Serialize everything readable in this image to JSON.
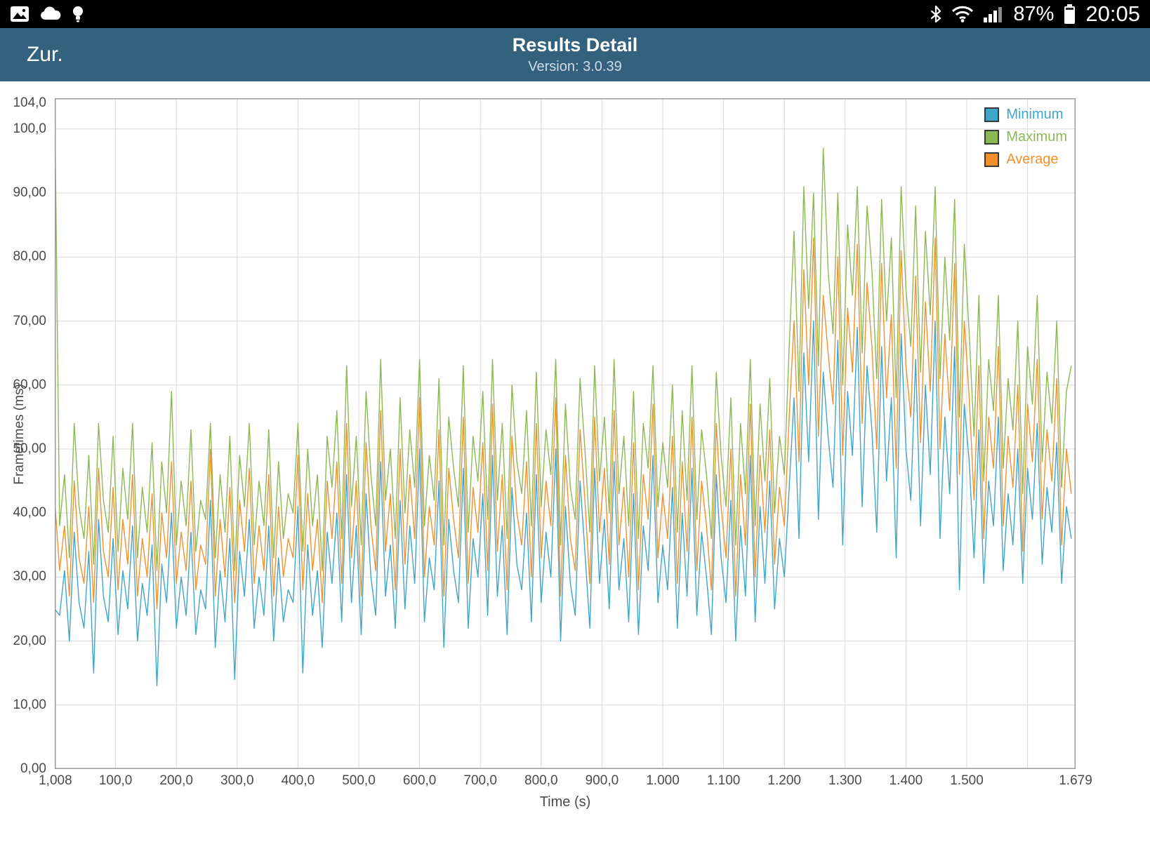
{
  "colors": {
    "app_bar": "#33617E",
    "status_bar": "#000000",
    "minimum": "#3FA5C9",
    "maximum": "#8CB854",
    "average": "#F0912D"
  },
  "status_bar": {
    "battery_percent": "87%",
    "time": "20:05",
    "left_icons": [
      "gallery-icon",
      "cloud-icon",
      "lightbulb-icon"
    ],
    "right_icons": [
      "bluetooth-icon",
      "wifi-icon",
      "signal-icon",
      "battery-icon"
    ]
  },
  "app_bar": {
    "back_label": "Zur.",
    "title": "Results Detail",
    "subtitle": "Version: 3.0.39"
  },
  "chart_data": {
    "type": "line",
    "title": "",
    "xlabel": "Time (s)",
    "ylabel": "Frametimes (ms)",
    "xlim": [
      0,
      1679
    ],
    "ylim": [
      0,
      104.8
    ],
    "grid": true,
    "legend_position": "top-right",
    "x_grid_step": 100,
    "x_ticks": [
      {
        "v": 1.008,
        "label": "1,008"
      },
      {
        "v": 100,
        "label": "100,0"
      },
      {
        "v": 200,
        "label": "200,0"
      },
      {
        "v": 300,
        "label": "300,0"
      },
      {
        "v": 400,
        "label": "400,0"
      },
      {
        "v": 500,
        "label": "500,0"
      },
      {
        "v": 600,
        "label": "600,0"
      },
      {
        "v": 700,
        "label": "700,0"
      },
      {
        "v": 800,
        "label": "800,0"
      },
      {
        "v": 900,
        "label": "900,0"
      },
      {
        "v": 1000,
        "label": "1.000"
      },
      {
        "v": 1100,
        "label": "1.100"
      },
      {
        "v": 1200,
        "label": "1.200"
      },
      {
        "v": 1300,
        "label": "1.300"
      },
      {
        "v": 1400,
        "label": "1.400"
      },
      {
        "v": 1500,
        "label": "1.500"
      },
      {
        "v": 1679,
        "label": "1.679"
      }
    ],
    "y_ticks": [
      {
        "v": 104,
        "label": "104,0"
      },
      {
        "v": 100,
        "label": "100,0"
      },
      {
        "v": 90,
        "label": "90,00"
      },
      {
        "v": 80,
        "label": "80,00"
      },
      {
        "v": 70,
        "label": "70,00"
      },
      {
        "v": 60,
        "label": "60,00"
      },
      {
        "v": 50,
        "label": "50,00"
      },
      {
        "v": 40,
        "label": "40,00"
      },
      {
        "v": 30,
        "label": "30,00"
      },
      {
        "v": 20,
        "label": "20,00"
      },
      {
        "v": 10,
        "label": "10,00"
      },
      {
        "v": 0,
        "label": "0,00"
      }
    ],
    "x_start": 0,
    "x_step": 8,
    "series": [
      {
        "name": "Minimum",
        "color": "#3FA5C9",
        "values": [
          25,
          24,
          31,
          20,
          37,
          26,
          22,
          34,
          15,
          39,
          27,
          23,
          36,
          21,
          31,
          25,
          38,
          20,
          29,
          24,
          35,
          13,
          32,
          26,
          40,
          22,
          30,
          24,
          37,
          21,
          28,
          25,
          42,
          19,
          31,
          23,
          36,
          14,
          34,
          27,
          39,
          22,
          30,
          24,
          38,
          20,
          33,
          23,
          28,
          26,
          41,
          15,
          35,
          24,
          31,
          19,
          37,
          29,
          40,
          23,
          46,
          26,
          38,
          21,
          43,
          30,
          24,
          48,
          27,
          35,
          22,
          42,
          25,
          38,
          29,
          50,
          23,
          33,
          28,
          45,
          19,
          39,
          31,
          26,
          47,
          22,
          36,
          30,
          43,
          24,
          49,
          27,
          38,
          21,
          44,
          32,
          28,
          40,
          23,
          46,
          26,
          37,
          30,
          50,
          20,
          41,
          29,
          24,
          45,
          34,
          22,
          47,
          29,
          39,
          25,
          48,
          28,
          36,
          23,
          43,
          21,
          38,
          31,
          49,
          26,
          35,
          28,
          44,
          22,
          40,
          27,
          47,
          24,
          37,
          30,
          21,
          46,
          33,
          26,
          42,
          20,
          38,
          27,
          49,
          23,
          41,
          29,
          45,
          25,
          36,
          30,
          44,
          58,
          36,
          65,
          48,
          70,
          39,
          62,
          52,
          44,
          67,
          35,
          59,
          49,
          69,
          41,
          63,
          53,
          37,
          66,
          45,
          58,
          33,
          68,
          50,
          42,
          64,
          38,
          60,
          46,
          70,
          36,
          55,
          43,
          66,
          28,
          57,
          48,
          33,
          53,
          29,
          45,
          38,
          55,
          31,
          43,
          35,
          50,
          29,
          47,
          39,
          54,
          32,
          44,
          37,
          51,
          29,
          41,
          36
        ]
      },
      {
        "name": "Maximum",
        "color": "#8CB854",
        "values": [
          104,
          38,
          46,
          33,
          54,
          41,
          36,
          49,
          32,
          54,
          42,
          37,
          52,
          34,
          47,
          39,
          54,
          33,
          44,
          37,
          51,
          31,
          48,
          40,
          59,
          35,
          45,
          38,
          53,
          34,
          42,
          39,
          54,
          33,
          46,
          37,
          52,
          31,
          49,
          41,
          54,
          35,
          45,
          38,
          53,
          33,
          48,
          36,
          43,
          40,
          54,
          34,
          50,
          38,
          46,
          31,
          52,
          44,
          56,
          36,
          63,
          41,
          52,
          35,
          59,
          46,
          38,
          64,
          42,
          50,
          36,
          58,
          40,
          53,
          44,
          64,
          38,
          49,
          42,
          61,
          35,
          55,
          47,
          41,
          63,
          37,
          52,
          45,
          59,
          39,
          64,
          42,
          54,
          36,
          60,
          48,
          43,
          56,
          38,
          62,
          41,
          53,
          46,
          64,
          35,
          57,
          44,
          39,
          61,
          50,
          37,
          63,
          45,
          55,
          40,
          64,
          43,
          52,
          38,
          59,
          36,
          54,
          47,
          63,
          41,
          51,
          44,
          60,
          37,
          56,
          42,
          63,
          39,
          53,
          46,
          36,
          62,
          49,
          41,
          58,
          35,
          54,
          43,
          64,
          38,
          57,
          45,
          61,
          40,
          52,
          46,
          66,
          84,
          59,
          91,
          72,
          90,
          63,
          97,
          78,
          68,
          90,
          60,
          85,
          74,
          91,
          65,
          88,
          78,
          61,
          89,
          70,
          83,
          58,
          91,
          75,
          66,
          88,
          62,
          84,
          71,
          91,
          61,
          80,
          67,
          89,
          55,
          82,
          68,
          52,
          74,
          45,
          64,
          56,
          74,
          47,
          61,
          53,
          70,
          43,
          66,
          57,
          74,
          48,
          62,
          54,
          70,
          44,
          59,
          63
        ]
      },
      {
        "name": "Average",
        "color": "#F0912D",
        "values": [
          42,
          31,
          38,
          27,
          45,
          33,
          29,
          41,
          26,
          47,
          34,
          30,
          44,
          28,
          39,
          32,
          46,
          27,
          36,
          30,
          43,
          25,
          40,
          33,
          48,
          29,
          37,
          31,
          45,
          28,
          35,
          32,
          50,
          27,
          39,
          30,
          44,
          26,
          42,
          34,
          47,
          29,
          38,
          31,
          46,
          27,
          41,
          30,
          36,
          33,
          49,
          28,
          43,
          31,
          39,
          26,
          45,
          36,
          48,
          29,
          54,
          33,
          45,
          27,
          51,
          38,
          31,
          56,
          34,
          43,
          28,
          50,
          32,
          46,
          36,
          58,
          30,
          41,
          35,
          53,
          27,
          47,
          39,
          33,
          55,
          29,
          44,
          37,
          51,
          31,
          57,
          34,
          46,
          28,
          52,
          40,
          35,
          48,
          30,
          54,
          33,
          45,
          38,
          58,
          27,
          49,
          36,
          31,
          53,
          42,
          29,
          55,
          37,
          47,
          32,
          56,
          35,
          44,
          30,
          51,
          28,
          46,
          39,
          57,
          33,
          43,
          36,
          52,
          29,
          48,
          34,
          55,
          31,
          45,
          38,
          28,
          54,
          41,
          33,
          50,
          27,
          46,
          35,
          57,
          30,
          49,
          37,
          53,
          32,
          44,
          38,
          55,
          70,
          48,
          78,
          60,
          83,
          52,
          74,
          65,
          57,
          80,
          49,
          72,
          62,
          82,
          54,
          76,
          66,
          50,
          79,
          58,
          71,
          47,
          81,
          63,
          55,
          77,
          51,
          73,
          59,
          83,
          50,
          68,
          56,
          79,
          46,
          70,
          58,
          42,
          63,
          36,
          55,
          47,
          66,
          38,
          52,
          44,
          60,
          34,
          57,
          48,
          64,
          39,
          53,
          45,
          61,
          35,
          50,
          43
        ]
      }
    ]
  }
}
